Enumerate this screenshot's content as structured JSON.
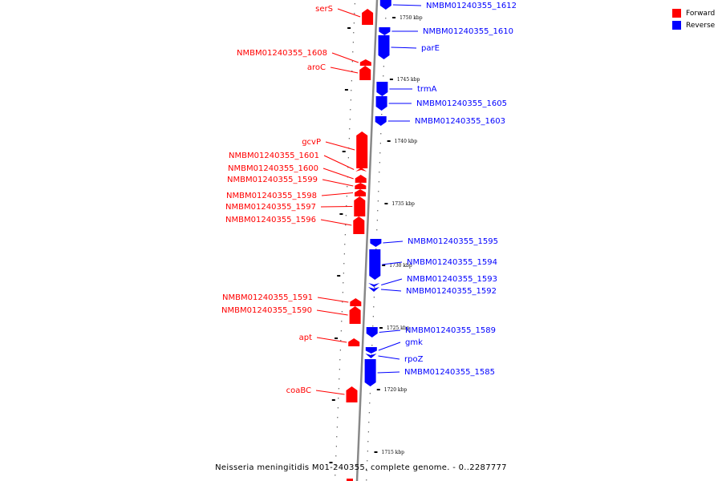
{
  "title": "Neisseria meningitidis M01-240355, complete genome. - 0..2287777",
  "legend": [
    {
      "label": "Forward",
      "color": "#ff0000"
    },
    {
      "label": "Reverse",
      "color": "#0000ff"
    }
  ],
  "colors": {
    "forward": "#ff0000",
    "reverse": "#0000ff",
    "backbone": "#888888"
  },
  "scale_ticks": [
    {
      "label": "1750 kbp"
    },
    {
      "label": "1745 kbp"
    },
    {
      "label": "1740 kbp"
    },
    {
      "label": "1735 kbp"
    },
    {
      "label": "1730 kbp"
    },
    {
      "label": "1725 kbp"
    },
    {
      "label": "1720 kbp"
    },
    {
      "label": "1715 kbp"
    }
  ],
  "forward_genes": [
    {
      "label": "serS"
    },
    {
      "label": "NMBM01240355_1608"
    },
    {
      "label": "aroC"
    },
    {
      "label": "gcvP"
    },
    {
      "label": "NMBM01240355_1601"
    },
    {
      "label": "NMBM01240355_1600"
    },
    {
      "label": "NMBM01240355_1599"
    },
    {
      "label": "NMBM01240355_1598"
    },
    {
      "label": "NMBM01240355_1597"
    },
    {
      "label": "NMBM01240355_1596"
    },
    {
      "label": "NMBM01240355_1591"
    },
    {
      "label": "NMBM01240355_1590"
    },
    {
      "label": "apt"
    },
    {
      "label": "coaBC"
    }
  ],
  "reverse_genes": [
    {
      "label": "NMBM01240355_1612"
    },
    {
      "label": "NMBM01240355_1610"
    },
    {
      "label": "parE"
    },
    {
      "label": "trmA"
    },
    {
      "label": "NMBM01240355_1605"
    },
    {
      "label": "NMBM01240355_1603"
    },
    {
      "label": "NMBM01240355_1595"
    },
    {
      "label": "NMBM01240355_1594"
    },
    {
      "label": "NMBM01240355_1593"
    },
    {
      "label": "NMBM01240355_1592"
    },
    {
      "label": "NMBM01240355_1589"
    },
    {
      "label": "gmk"
    },
    {
      "label": "rpoZ"
    },
    {
      "label": "NMBM01240355_1585"
    }
  ]
}
